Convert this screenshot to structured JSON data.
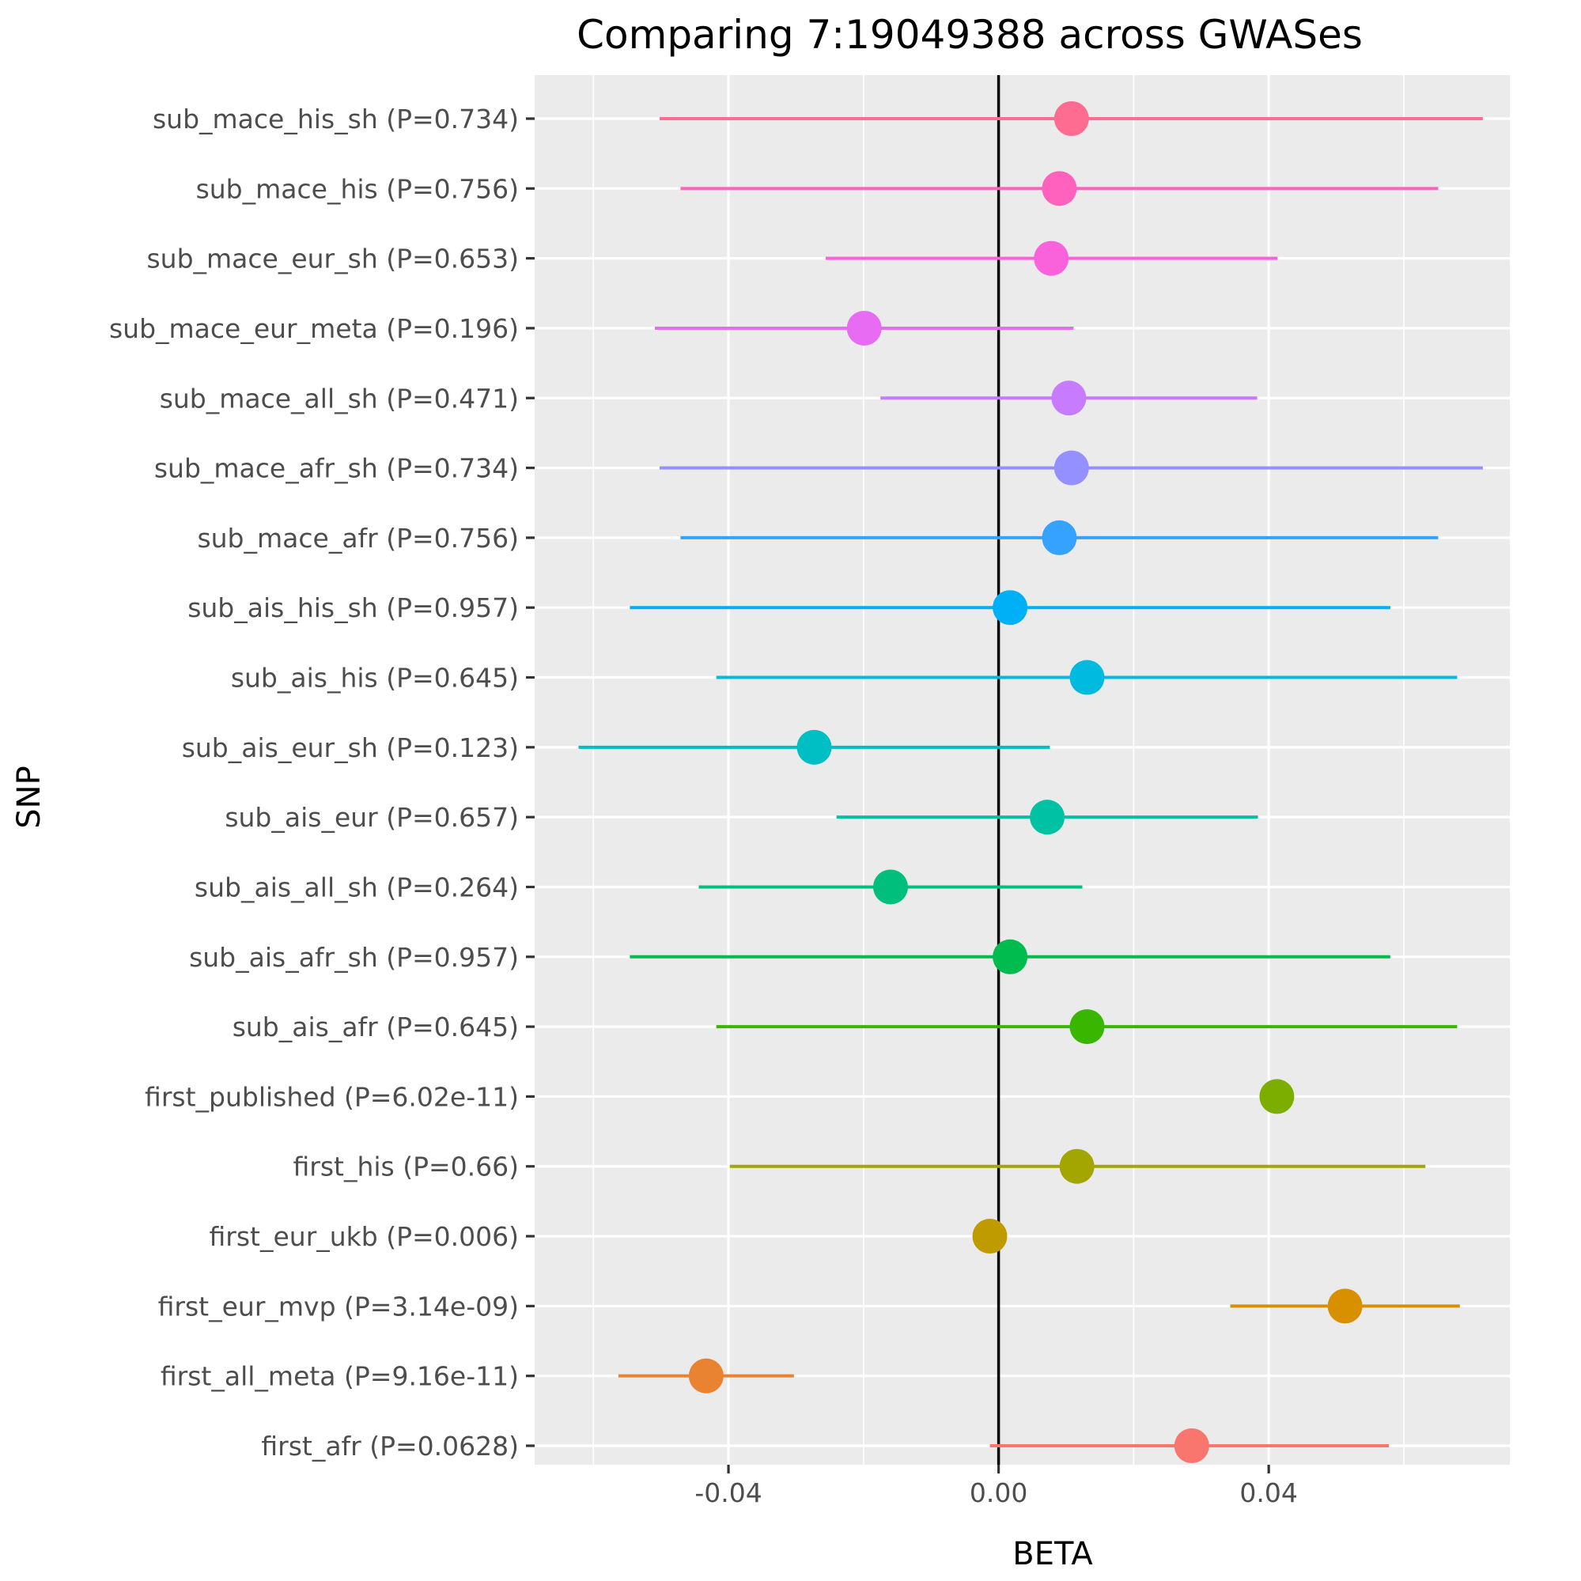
{
  "chart_data": {
    "type": "forest",
    "title": "Comparing 7:19049388 across GWASes",
    "xlabel": "BETA",
    "ylabel": "SNP",
    "xlim": [
      -0.0687,
      0.0757
    ],
    "x_ticks": [
      -0.04,
      0.0,
      0.04
    ],
    "x_tick_labels": [
      "-0.04",
      "0.00",
      "0.04"
    ],
    "reference_line": 0,
    "grid": true,
    "legend": "none",
    "series": [
      {
        "label": "first_afr (P=0.0628)",
        "beta": 0.0286,
        "lo": -0.0013,
        "hi": 0.0578,
        "color": "#F8766D"
      },
      {
        "label": "first_all_meta (P=9.16e-11)",
        "beta": -0.0433,
        "lo": -0.0563,
        "hi": -0.0303,
        "color": "#EA8331"
      },
      {
        "label": "first_eur_mvp (P=3.14e-09)",
        "beta": 0.0513,
        "lo": 0.0343,
        "hi": 0.0683,
        "color": "#D89000"
      },
      {
        "label": "first_eur_ukb (P=0.006)",
        "beta": -0.0013,
        "lo": -0.0013,
        "hi": -0.0013,
        "color": "#C09B00"
      },
      {
        "label": "first_his (P=0.66)",
        "beta": 0.0116,
        "lo": -0.0398,
        "hi": 0.0632,
        "color": "#A3A500"
      },
      {
        "label": "first_published (P=6.02e-11)",
        "beta": 0.0412,
        "lo": 0.0412,
        "hi": 0.0412,
        "color": "#7CAE00"
      },
      {
        "label": "sub_ais_afr (P=0.645)",
        "beta": 0.0131,
        "lo": -0.0418,
        "hi": 0.0679,
        "color": "#39B600"
      },
      {
        "label": "sub_ais_afr_sh (P=0.957)",
        "beta": 0.0017,
        "lo": -0.0546,
        "hi": 0.058,
        "color": "#00BB4E"
      },
      {
        "label": "sub_ais_all_sh (P=0.264)",
        "beta": -0.016,
        "lo": -0.0444,
        "hi": 0.0124,
        "color": "#00BF7D"
      },
      {
        "label": "sub_ais_eur (P=0.657)",
        "beta": 0.0072,
        "lo": -0.024,
        "hi": 0.0384,
        "color": "#00C1A3"
      },
      {
        "label": "sub_ais_eur_sh (P=0.123)",
        "beta": -0.0273,
        "lo": -0.0622,
        "hi": 0.0076,
        "color": "#00BFC4"
      },
      {
        "label": "sub_ais_his (P=0.645)",
        "beta": 0.0131,
        "lo": -0.0418,
        "hi": 0.0679,
        "color": "#00BAE0"
      },
      {
        "label": "sub_ais_his_sh (P=0.957)",
        "beta": 0.0017,
        "lo": -0.0546,
        "hi": 0.058,
        "color": "#00B0F6"
      },
      {
        "label": "sub_mace_afr (P=0.756)",
        "beta": 0.009,
        "lo": -0.0471,
        "hi": 0.0651,
        "color": "#35A2FF"
      },
      {
        "label": "sub_mace_afr_sh (P=0.734)",
        "beta": 0.0108,
        "lo": -0.0502,
        "hi": 0.0717,
        "color": "#9590FF"
      },
      {
        "label": "sub_mace_all_sh (P=0.471)",
        "beta": 0.0104,
        "lo": -0.0175,
        "hi": 0.0383,
        "color": "#C77CFF"
      },
      {
        "label": "sub_mace_eur_meta (P=0.196)",
        "beta": -0.0199,
        "lo": -0.0509,
        "hi": 0.0111,
        "color": "#E76BF3"
      },
      {
        "label": "sub_mace_eur_sh (P=0.653)",
        "beta": 0.0078,
        "lo": -0.0256,
        "hi": 0.0413,
        "color": "#FA62DB"
      },
      {
        "label": "sub_mace_his (P=0.756)",
        "beta": 0.009,
        "lo": -0.0471,
        "hi": 0.0651,
        "color": "#FF62BC"
      },
      {
        "label": "sub_mace_his_sh (P=0.734)",
        "beta": 0.0108,
        "lo": -0.0502,
        "hi": 0.0717,
        "color": "#FF6C91"
      }
    ]
  }
}
